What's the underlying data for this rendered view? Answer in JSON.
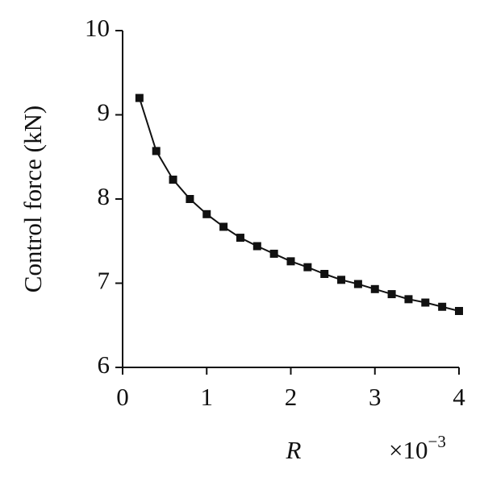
{
  "chart_data": {
    "type": "line",
    "y_label": "Control force (kN)",
    "x_label": "R",
    "x_multiplier": {
      "base": "×10",
      "exponent": "−3"
    },
    "x": [
      0.2,
      0.4,
      0.6,
      0.8,
      1.0,
      1.2,
      1.4,
      1.6,
      1.8,
      2.0,
      2.2,
      2.4,
      2.6,
      2.8,
      3.0,
      3.2,
      3.4,
      3.6,
      3.8,
      4.0
    ],
    "series": [
      {
        "color": "#111111",
        "values": [
          9.2,
          8.57,
          8.23,
          8.0,
          7.82,
          7.67,
          7.54,
          7.44,
          7.35,
          7.26,
          7.19,
          7.11,
          7.04,
          6.99,
          6.93,
          6.87,
          6.81,
          6.77,
          6.72,
          6.67
        ]
      }
    ],
    "xlim": [
      0,
      4
    ],
    "xticks": [
      0,
      1,
      2,
      3,
      4
    ],
    "ylim": [
      6,
      10
    ],
    "yticks": [
      6,
      7,
      8,
      9,
      10
    ],
    "marker": "square"
  }
}
